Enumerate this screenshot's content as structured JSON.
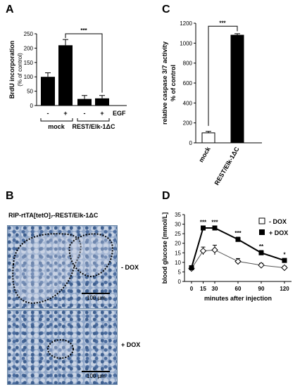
{
  "panels": {
    "A": {
      "letter": "A"
    },
    "B": {
      "letter": "B",
      "title": "RIP-rtTA[tetO]₇-REST/Elk-1ΔC",
      "image_top_label": "- DOX",
      "image_bottom_label": "+ DOX",
      "scale_text": "100 µm"
    },
    "C": {
      "letter": "C"
    },
    "D": {
      "letter": "D"
    }
  },
  "chart_data": [
    {
      "panel": "A",
      "type": "bar",
      "ylabel": "BrdU incorporation",
      "ylabel2": "(% of control)",
      "ylim": [
        0,
        250
      ],
      "yticks": [
        0,
        50,
        100,
        150,
        200,
        250
      ],
      "bar_labels": [
        "-",
        "+",
        "-",
        "+"
      ],
      "values": [
        100,
        210,
        23,
        25
      ],
      "errors": [
        14,
        20,
        12,
        10
      ],
      "treatment_label": "EGF",
      "groups": [
        "mock",
        "REST/Elk-1ΔC"
      ],
      "significance": "***",
      "bar_color": "#000000"
    },
    {
      "panel": "C",
      "type": "bar",
      "ylabel": "relative caspase 3/7 activity",
      "ylabel2": "% of control",
      "ylim": [
        0,
        1200
      ],
      "yticks": [
        0,
        200,
        400,
        600,
        800,
        1000,
        1200
      ],
      "categories": [
        "mock",
        "REST/Elk-1ΔC"
      ],
      "values": [
        100,
        1080
      ],
      "errors": [
        15,
        15
      ],
      "bar_fills": [
        "#ffffff",
        "#000000"
      ],
      "significance": "***"
    },
    {
      "panel": "D",
      "type": "line",
      "xlabel": "minutes after injection",
      "ylabel": "blood glucose [mmol/L]",
      "ylim": [
        0,
        35
      ],
      "yticks": [
        0,
        5,
        10,
        15,
        20,
        25,
        30,
        35
      ],
      "x": [
        0,
        15,
        30,
        60,
        90,
        120
      ],
      "series": [
        {
          "name": "- DOX",
          "values": [
            6.8,
            16,
            16.5,
            10.5,
            8.5,
            7.2
          ],
          "errors": [
            1,
            2,
            2.5,
            1.5,
            1,
            0.8
          ],
          "marker": "open-diamond"
        },
        {
          "name": "+ DOX",
          "values": [
            7.2,
            28,
            28,
            22,
            15,
            11
          ],
          "errors": [
            0.8,
            1,
            1,
            1.2,
            1.2,
            1
          ],
          "marker": "filled-square"
        }
      ],
      "significance": [
        "",
        "***",
        "***",
        "***",
        "**",
        "*"
      ],
      "legend": "top-right"
    }
  ]
}
